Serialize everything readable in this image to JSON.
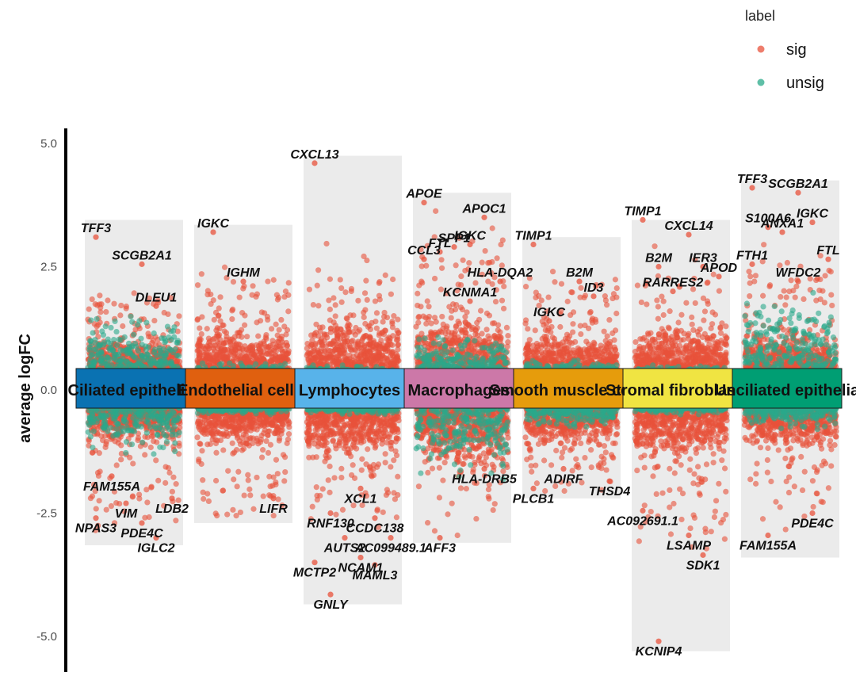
{
  "chart_data": {
    "type": "scatter",
    "ylabel": "average logFC",
    "xlabel": "",
    "ylim": [
      -5.4,
      5.25
    ],
    "y_ticks": [
      5.0,
      2.5,
      0.0,
      -2.5,
      -5.0
    ],
    "y_tick_labels": [
      "5.0",
      "2.5",
      "0.0",
      "-2.5",
      "-5.0"
    ],
    "legend": {
      "title": "label",
      "placement": "top-right",
      "entries": [
        {
          "name": "sig",
          "color": "#e8523b"
        },
        {
          "name": "unsig",
          "color": "#2aa98a"
        }
      ]
    },
    "clusters": [
      {
        "name": "Ciliated epithelia",
        "color": "#0a72b2",
        "range": [
          -3.15,
          3.45
        ],
        "up_density": [
          0.5,
          0.9,
          1.3,
          1.9
        ],
        "down_density": [
          -0.55,
          -1.0,
          -1.6,
          -2.4
        ],
        "unsig_up": 1.3,
        "unsig_down": 1.0,
        "genes": [
          {
            "gene": "TFF3",
            "logFC": 3.1
          },
          {
            "gene": "SCGB2A1",
            "logFC": 2.55
          },
          {
            "gene": "DLEU1",
            "logFC": 1.7
          },
          {
            "gene": "FAM155A",
            "logFC": -1.75
          },
          {
            "gene": "VIM",
            "logFC": -2.3
          },
          {
            "gene": "LDB2",
            "logFC": -2.2
          },
          {
            "gene": "NPAS3",
            "logFC": -2.6
          },
          {
            "gene": "PDE4C",
            "logFC": -2.7
          },
          {
            "gene": "IGLC2",
            "logFC": -3.0
          }
        ]
      },
      {
        "name": "Endothelial cells",
        "color": "#e0600f",
        "range": [
          -2.7,
          3.35
        ],
        "up_density": [
          0.7,
          1.2,
          1.6,
          2.0
        ],
        "down_density": [
          -0.6,
          -1.1,
          -1.5,
          -2.2
        ],
        "unsig_up": 0.25,
        "unsig_down": 0.2,
        "genes": [
          {
            "gene": "IGKC",
            "logFC": 3.2
          },
          {
            "gene": "IGHM",
            "logFC": 2.2
          },
          {
            "gene": "LIFR",
            "logFC": -2.2
          }
        ]
      },
      {
        "name": "Lymphocytes",
        "color": "#58b3ea",
        "range": [
          -4.35,
          4.75
        ],
        "up_density": [
          0.8,
          1.3,
          1.7,
          2.2
        ],
        "down_density": [
          -0.8,
          -1.3,
          -1.7,
          -2.2
        ],
        "unsig_up": 0.2,
        "unsig_down": 0.2,
        "genes": [
          {
            "gene": "CXCL13",
            "logFC": 4.6
          },
          {
            "gene": "XCL1",
            "logFC": -2.0
          },
          {
            "gene": "CCDC138",
            "logFC": -2.6
          },
          {
            "gene": "RNF130",
            "logFC": -2.5
          },
          {
            "gene": "AUTS2",
            "logFC": -3.0
          },
          {
            "gene": "AC099489.1",
            "logFC": -3.0
          },
          {
            "gene": "MCTP2",
            "logFC": -3.5
          },
          {
            "gene": "NCAM1",
            "logFC": -3.4
          },
          {
            "gene": "MAML3",
            "logFC": -3.55
          },
          {
            "gene": "GNLY",
            "logFC": -4.15
          }
        ]
      },
      {
        "name": "Macrophages",
        "color": "#cc78a8",
        "range": [
          -3.1,
          4.0
        ],
        "up_density": [
          0.9,
          1.4,
          1.9,
          2.6
        ],
        "down_density": [
          -0.9,
          -1.2,
          -1.6,
          -2.1
        ],
        "unsig_up": 0.85,
        "unsig_down": 1.6,
        "genes": [
          {
            "gene": "APOE",
            "logFC": 3.8
          },
          {
            "gene": "IGKC",
            "logFC": 2.95
          },
          {
            "gene": "APOC1",
            "logFC": 3.5
          },
          {
            "gene": "FTL",
            "logFC": 2.8
          },
          {
            "gene": "SPP1",
            "logFC": 2.9
          },
          {
            "gene": "HLA-DQA2",
            "logFC": 2.2
          },
          {
            "gene": "CCL3",
            "logFC": 2.65
          },
          {
            "gene": "KCNMA1",
            "logFC": 1.8
          },
          {
            "gene": "HLA-DRB5",
            "logFC": -1.6
          },
          {
            "gene": "AFF3",
            "logFC": -3.0
          }
        ]
      },
      {
        "name": "Smooth muscle cells",
        "color": "#e69c0c",
        "range": [
          -2.2,
          3.1
        ],
        "up_density": [
          0.6,
          1.0,
          1.5,
          2.0
        ],
        "down_density": [
          -0.6,
          -0.9,
          -1.2,
          -1.6
        ],
        "unsig_up": 0.3,
        "unsig_down": 0.5,
        "genes": [
          {
            "gene": "TIMP1",
            "logFC": 2.95
          },
          {
            "gene": "B2M",
            "logFC": 2.2
          },
          {
            "gene": "ID3",
            "logFC": 1.9
          },
          {
            "gene": "IGKC",
            "logFC": 1.4
          },
          {
            "gene": "ADIRF",
            "logFC": -1.6
          },
          {
            "gene": "THSD4",
            "logFC": -1.85
          },
          {
            "gene": "PLCB1",
            "logFC": -2.0
          }
        ]
      },
      {
        "name": "Stromal fibroblasts",
        "color": "#f0e442",
        "range": [
          -5.3,
          3.45
        ],
        "up_density": [
          0.7,
          1.2,
          1.7,
          2.3
        ],
        "down_density": [
          -0.8,
          -1.3,
          -1.9,
          -2.7
        ],
        "unsig_up": 0.2,
        "unsig_down": 0.2,
        "genes": [
          {
            "gene": "TIMP1",
            "logFC": 3.45
          },
          {
            "gene": "CXCL14",
            "logFC": 3.15
          },
          {
            "gene": "IER3",
            "logFC": 2.5
          },
          {
            "gene": "B2M",
            "logFC": 2.5
          },
          {
            "gene": "RARRES2",
            "logFC": 2.0
          },
          {
            "gene": "APOD",
            "logFC": 2.3
          },
          {
            "gene": "AC092691.1",
            "logFC": -2.45
          },
          {
            "gene": "LSAMP",
            "logFC": -2.95
          },
          {
            "gene": "SDK1",
            "logFC": -3.35
          },
          {
            "gene": "KCNIP4",
            "logFC": -5.1
          }
        ]
      },
      {
        "name": "Unciliated epithelia",
        "color": "#009e73",
        "range": [
          -3.4,
          4.25
        ],
        "up_density": [
          0.6,
          1.1,
          1.6,
          2.3
        ],
        "down_density": [
          -0.6,
          -1.1,
          -1.7,
          -2.3
        ],
        "unsig_up": 1.8,
        "unsig_down": 0.5,
        "genes": [
          {
            "gene": "TFF3",
            "logFC": 4.1
          },
          {
            "gene": "SCGB2A1",
            "logFC": 4.0
          },
          {
            "gene": "IGKC",
            "logFC": 3.4
          },
          {
            "gene": "S100A6",
            "logFC": 3.3
          },
          {
            "gene": "ANXA1",
            "logFC": 3.2
          },
          {
            "gene": "FTL",
            "logFC": 2.65
          },
          {
            "gene": "FTH1",
            "logFC": 2.55
          },
          {
            "gene": "WFDC2",
            "logFC": 2.2
          },
          {
            "gene": "PDE4C",
            "logFC": -2.5
          },
          {
            "gene": "FAM155A",
            "logFC": -2.95
          }
        ]
      }
    ]
  }
}
